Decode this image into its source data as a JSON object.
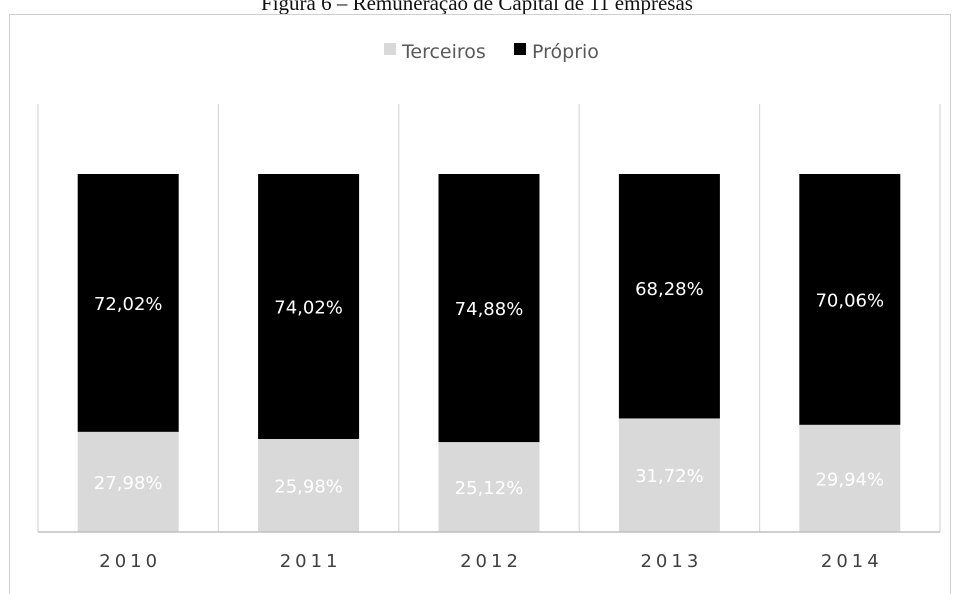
{
  "figure_title": "Figura 6 – Remuneração de Capital de 11 empresas",
  "chart_data": {
    "type": "bar",
    "stacked": true,
    "percent_stacked": true,
    "categories": [
      "2010",
      "2011",
      "2012",
      "2013",
      "2014"
    ],
    "series": [
      {
        "name": "Terceiros",
        "color": "#d9d9d9",
        "values": [
          27.98,
          25.98,
          25.12,
          31.72,
          29.94
        ],
        "labels": [
          "27,98%",
          "25,98%",
          "25,12%",
          "31,72%",
          "29,94%"
        ]
      },
      {
        "name": "Próprio",
        "color": "#000000",
        "values": [
          72.02,
          74.02,
          74.88,
          68.28,
          70.06
        ],
        "labels": [
          "72,02%",
          "74,02%",
          "74,88%",
          "68,28%",
          "70,06%"
        ]
      }
    ],
    "ylim": [
      0,
      100
    ],
    "legend_position": "top-center",
    "gridlines": "vertical-category-separators"
  }
}
